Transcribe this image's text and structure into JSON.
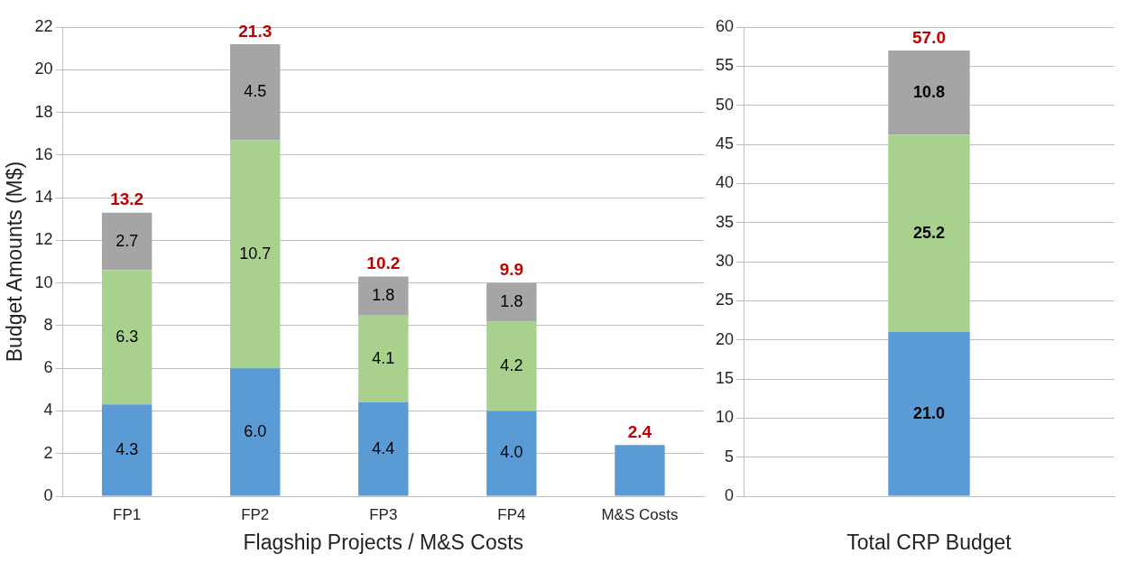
{
  "chart_data": [
    {
      "type": "bar",
      "stacked": true,
      "xlabel": "Flagship Projects / M&S Costs",
      "ylabel": "Budget Amounts (M$)",
      "categories": [
        "FP1",
        "FP2",
        "FP3",
        "FP4",
        "M&S Costs"
      ],
      "series": [
        {
          "color": "#5b9bd5",
          "values": [
            4.3,
            6.0,
            4.4,
            4.0,
            2.4
          ],
          "value_labels": [
            "4.3",
            "6.0",
            "4.4",
            "4.0",
            null
          ]
        },
        {
          "color": "#a9d18e",
          "values": [
            6.3,
            10.7,
            4.1,
            4.2,
            null
          ],
          "value_labels": [
            "6.3",
            "10.7",
            "4.1",
            "4.2",
            null
          ]
        },
        {
          "color": "#a5a5a5",
          "values": [
            2.7,
            4.5,
            1.8,
            1.8,
            null
          ],
          "value_labels": [
            "2.7",
            "4.5",
            "1.8",
            "1.8",
            null
          ]
        }
      ],
      "totals": [
        "13.2",
        "21.3",
        "10.2",
        "9.9",
        "2.4"
      ],
      "ylim": [
        0,
        22
      ],
      "yticks": [
        0,
        2,
        4,
        6,
        8,
        10,
        12,
        14,
        16,
        18,
        20,
        22
      ],
      "grid": "y",
      "legend": false
    },
    {
      "type": "bar",
      "stacked": true,
      "xlabel": "Total CRP Budget",
      "categories": [
        null
      ],
      "series": [
        {
          "color": "#5b9bd5",
          "values": [
            21.0
          ],
          "value_labels": [
            "21.0"
          ]
        },
        {
          "color": "#a9d18e",
          "values": [
            25.2
          ],
          "value_labels": [
            "25.2"
          ]
        },
        {
          "color": "#a5a5a5",
          "values": [
            10.8
          ],
          "value_labels": [
            "10.8"
          ]
        }
      ],
      "totals": [
        "57.0"
      ],
      "ylim": [
        0,
        60
      ],
      "yticks": [
        0,
        5,
        10,
        15,
        20,
        25,
        30,
        35,
        40,
        45,
        50,
        55,
        60
      ],
      "grid": "y",
      "legend": false
    }
  ]
}
